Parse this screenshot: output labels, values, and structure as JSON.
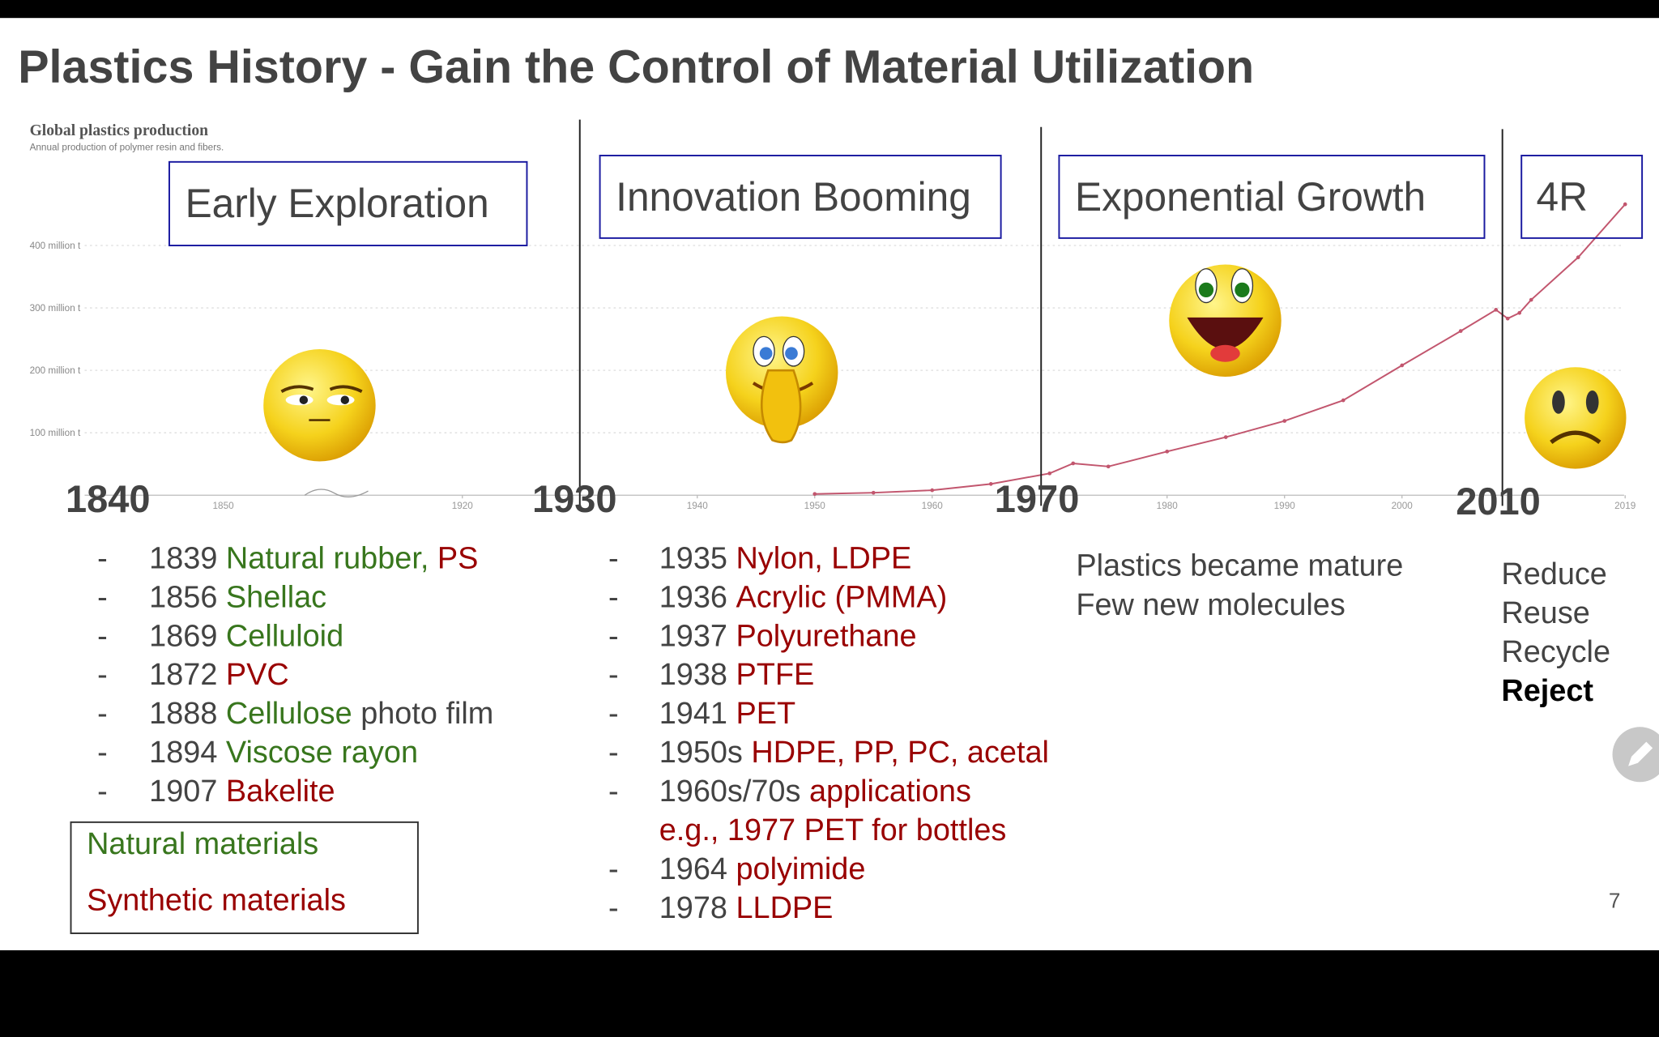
{
  "title": "Plastics History - Gain the Control of Material Utilization",
  "chart": {
    "type": "line",
    "title": "Global plastics production",
    "subtitle": "Annual production of polymer resin and fibers.",
    "color": "#c2566e",
    "grid": true,
    "x": [
      1950,
      1955,
      1960,
      1965,
      1970,
      1972,
      1975,
      1980,
      1985,
      1990,
      1995,
      2000,
      2005,
      2008,
      2009,
      2010,
      2011,
      2015,
      2019
    ],
    "values": [
      2,
      4,
      8,
      18,
      35,
      51,
      46,
      70,
      93,
      119,
      152,
      208,
      263,
      297,
      283,
      292,
      313,
      381,
      466
    ],
    "xlim": [
      1920,
      2019
    ],
    "ylim": [
      0,
      500
    ],
    "xticks": [
      1920,
      1940,
      1950,
      1960,
      1980,
      1990,
      2000,
      2019
    ],
    "break_label": "1850",
    "yticks": [
      {
        "value": 100,
        "label": "100 million t"
      },
      {
        "value": 200,
        "label": "200 million t"
      },
      {
        "value": 300,
        "label": "300 million t"
      },
      {
        "value": 400,
        "label": "400 million t"
      }
    ]
  },
  "eras": [
    {
      "year": "1840",
      "heading": "Early Exploration"
    },
    {
      "year": "1930",
      "heading": "Innovation Booming"
    },
    {
      "year": "1970",
      "heading": "Exponential Growth"
    },
    {
      "year": "2010",
      "heading": "4R"
    }
  ],
  "list_early": [
    [
      [
        {
          "text": "1839",
          "color": "#434343"
        },
        {
          "text": "Natural rubber,",
          "color": "#38761d"
        },
        {
          "text": "PS",
          "color": "#990000"
        }
      ]
    ],
    [
      [
        {
          "text": "1856",
          "color": "#434343"
        },
        {
          "text": "Shellac",
          "color": "#38761d"
        }
      ]
    ],
    [
      [
        {
          "text": "1869",
          "color": "#434343"
        },
        {
          "text": "Celluloid",
          "color": "#38761d"
        }
      ]
    ],
    [
      [
        {
          "text": "1872",
          "color": "#434343"
        },
        {
          "text": "PVC",
          "color": "#990000"
        }
      ]
    ],
    [
      [
        {
          "text": "1888",
          "color": "#434343"
        },
        {
          "text": "Cellulose",
          "color": "#38761d"
        },
        {
          "text": "photo film",
          "color": "#434343"
        }
      ]
    ],
    [
      [
        {
          "text": "1894",
          "color": "#434343"
        },
        {
          "text": "Viscose rayon",
          "color": "#38761d"
        }
      ]
    ],
    [
      [
        {
          "text": "1907",
          "color": "#434343"
        },
        {
          "text": "Bakelite",
          "color": "#990000"
        }
      ]
    ]
  ],
  "list_innovation": [
    [
      [
        {
          "text": "1935",
          "color": "#434343"
        },
        {
          "text": "Nylon, LDPE",
          "color": "#990000"
        }
      ]
    ],
    [
      [
        {
          "text": "1936",
          "color": "#434343"
        },
        {
          "text": "Acrylic (PMMA)",
          "color": "#990000"
        }
      ]
    ],
    [
      [
        {
          "text": "1937",
          "color": "#434343"
        },
        {
          "text": "Polyurethane",
          "color": "#990000"
        }
      ]
    ],
    [
      [
        {
          "text": "1938",
          "color": "#434343"
        },
        {
          "text": "PTFE",
          "color": "#990000"
        }
      ]
    ],
    [
      [
        {
          "text": "1941",
          "color": "#434343"
        },
        {
          "text": "PET",
          "color": "#990000"
        }
      ]
    ],
    [
      [
        {
          "text": "1950s",
          "color": "#434343"
        },
        {
          "text": "HDPE, PP, PC, acetal",
          "color": "#990000"
        }
      ]
    ],
    [
      [
        {
          "text": "1960s/70s",
          "color": "#434343"
        },
        {
          "text": "applications",
          "color": "#990000"
        }
      ],
      [
        {
          "text": "e.g., 1977 PET for bottles",
          "color": "#990000"
        }
      ]
    ],
    [
      [
        {
          "text": "1964",
          "color": "#434343"
        },
        {
          "text": "polyimide",
          "color": "#990000"
        }
      ]
    ],
    [
      [
        {
          "text": "1978",
          "color": "#434343"
        },
        {
          "text": "LLDPE",
          "color": "#990000"
        }
      ]
    ]
  ],
  "growth_notes": [
    "Plastics became mature",
    "Few new molecules"
  ],
  "four_r": [
    "Reduce",
    "Reuse",
    "Recycle",
    "Reject"
  ],
  "legend": {
    "natural": "Natural materials",
    "synthetic": "Synthetic materials"
  },
  "page_number": "7"
}
